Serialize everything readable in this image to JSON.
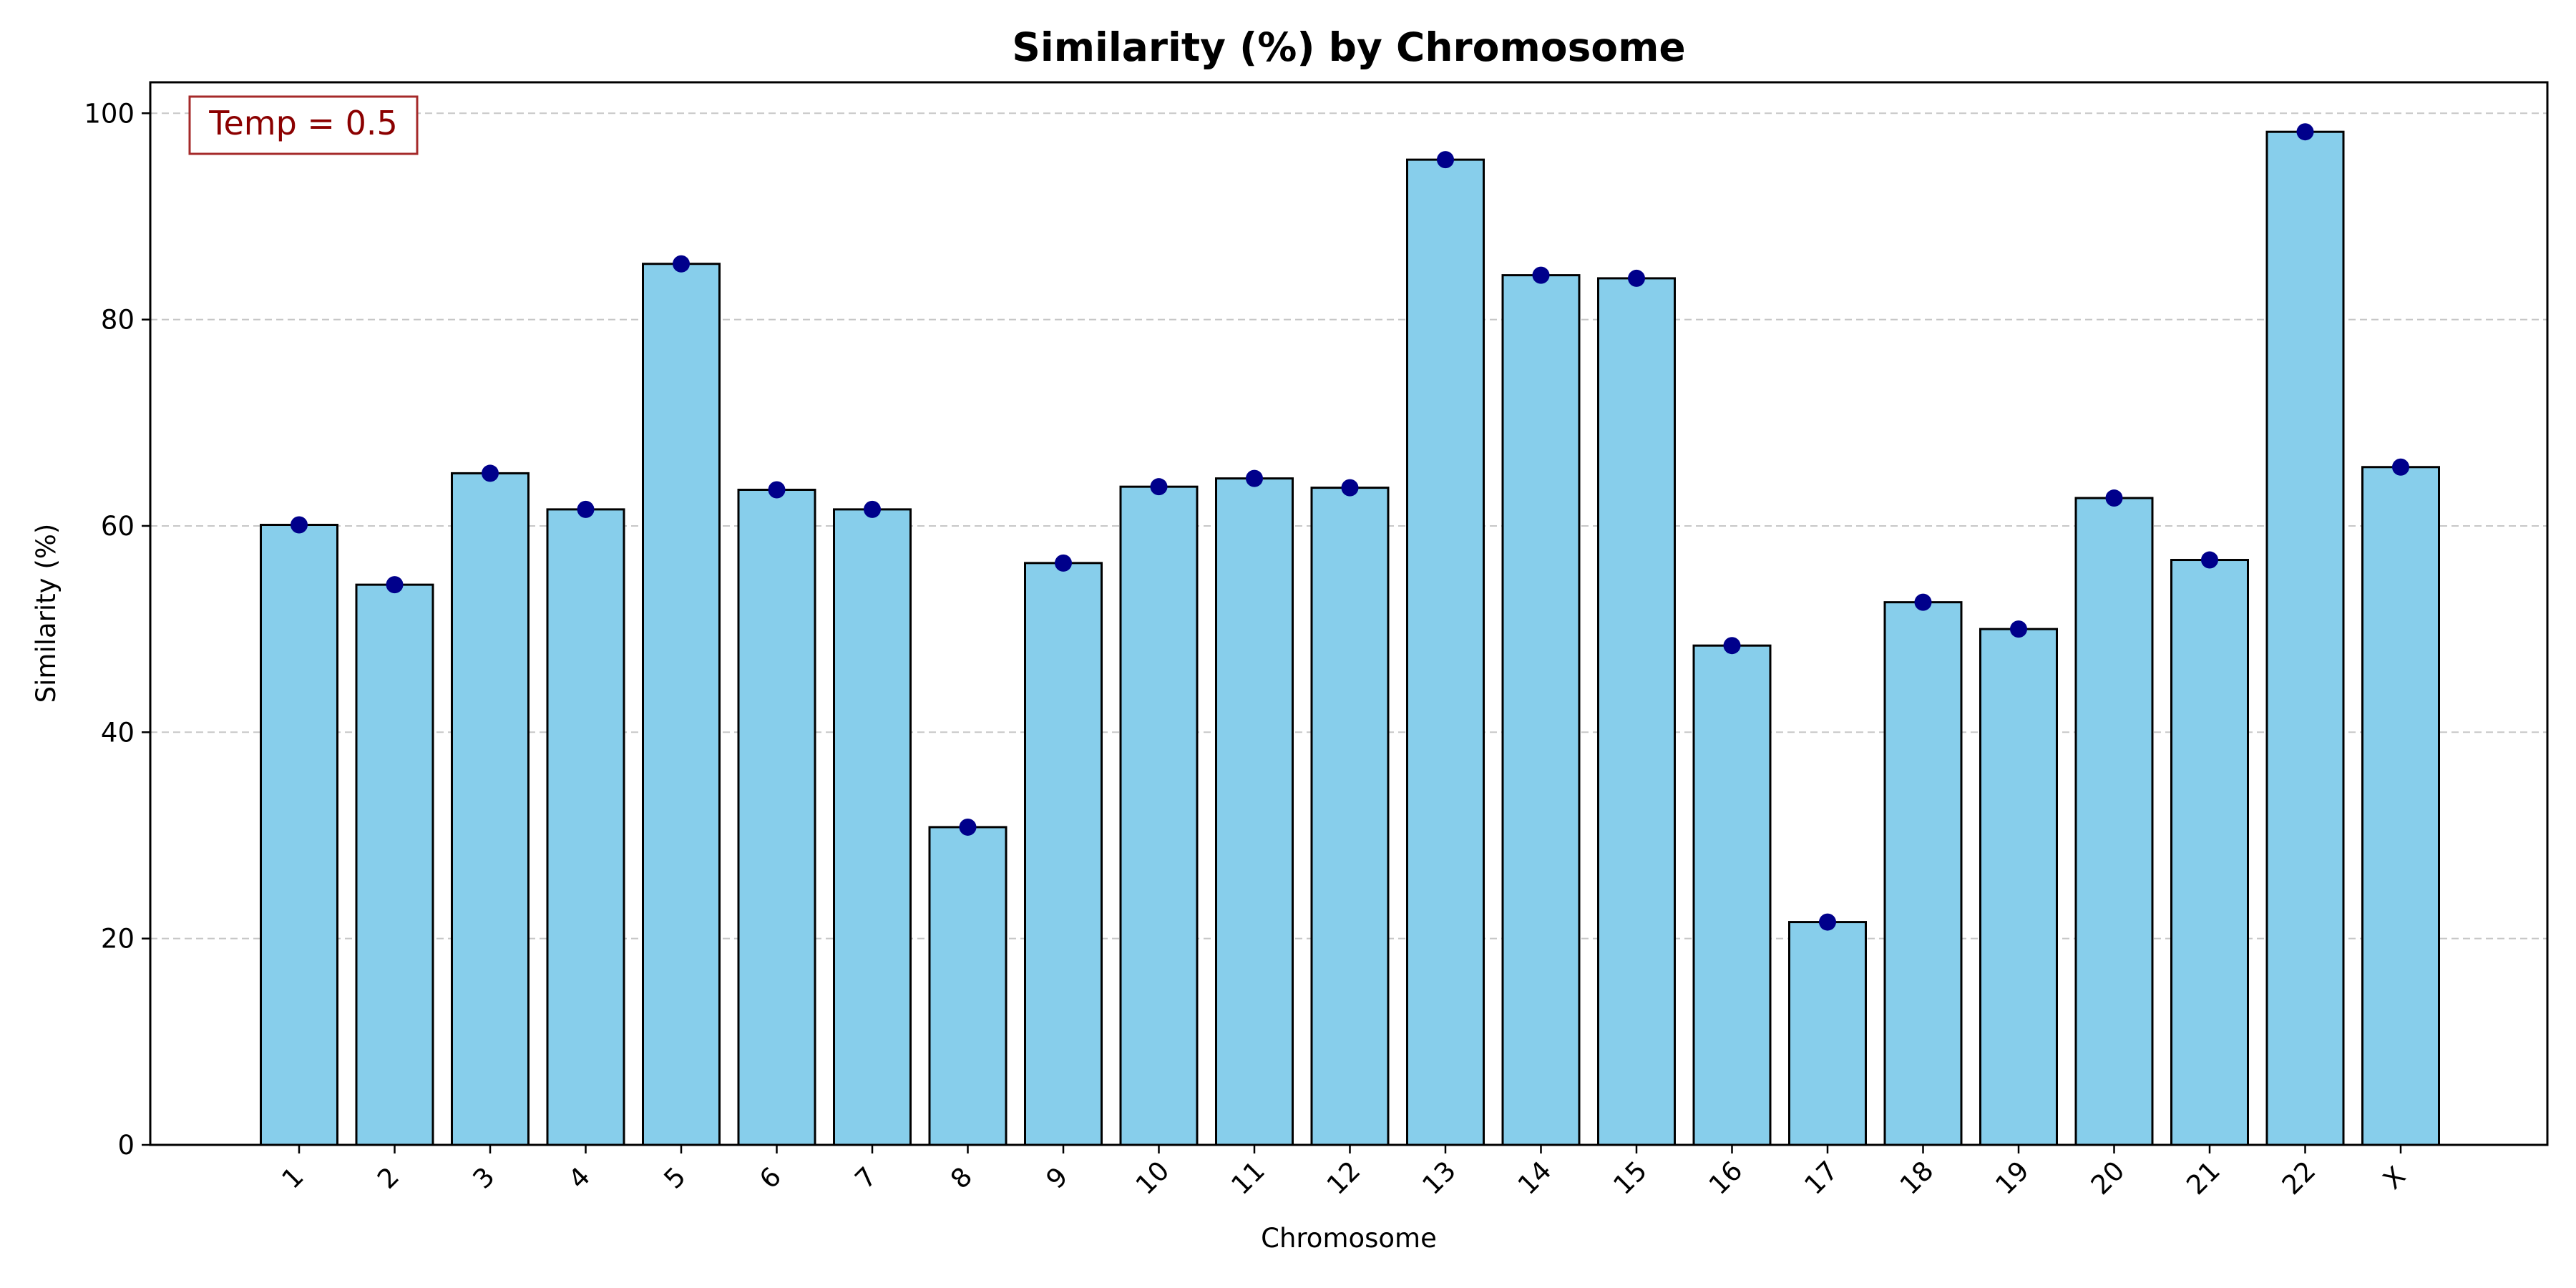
{
  "chart_data": {
    "type": "bar",
    "title": "Similarity (%) by Chromosome",
    "xlabel": "Chromosome",
    "ylabel": "Similarity (%)",
    "categories": [
      "1",
      "2",
      "3",
      "4",
      "5",
      "6",
      "7",
      "8",
      "9",
      "10",
      "11",
      "12",
      "13",
      "14",
      "15",
      "16",
      "17",
      "18",
      "19",
      "20",
      "21",
      "22",
      "X"
    ],
    "values": [
      60.1,
      54.3,
      65.1,
      61.6,
      85.4,
      63.5,
      61.6,
      30.8,
      56.4,
      63.8,
      64.6,
      63.7,
      95.5,
      84.3,
      84.0,
      48.4,
      21.6,
      52.6,
      50.0,
      62.7,
      56.7,
      98.2,
      65.7
    ],
    "ylim": [
      0,
      103
    ],
    "yticks": [
      0,
      20,
      40,
      60,
      80,
      100
    ],
    "grid": "y-dashed",
    "bar_color": "#87ceeb",
    "bar_edge_color": "#000000",
    "marker_color": "#00008b",
    "annotation": {
      "text": "Temp = 0.5",
      "placement": "top-left",
      "text_color": "#8b0000",
      "border_color": "#a52a2a"
    }
  }
}
